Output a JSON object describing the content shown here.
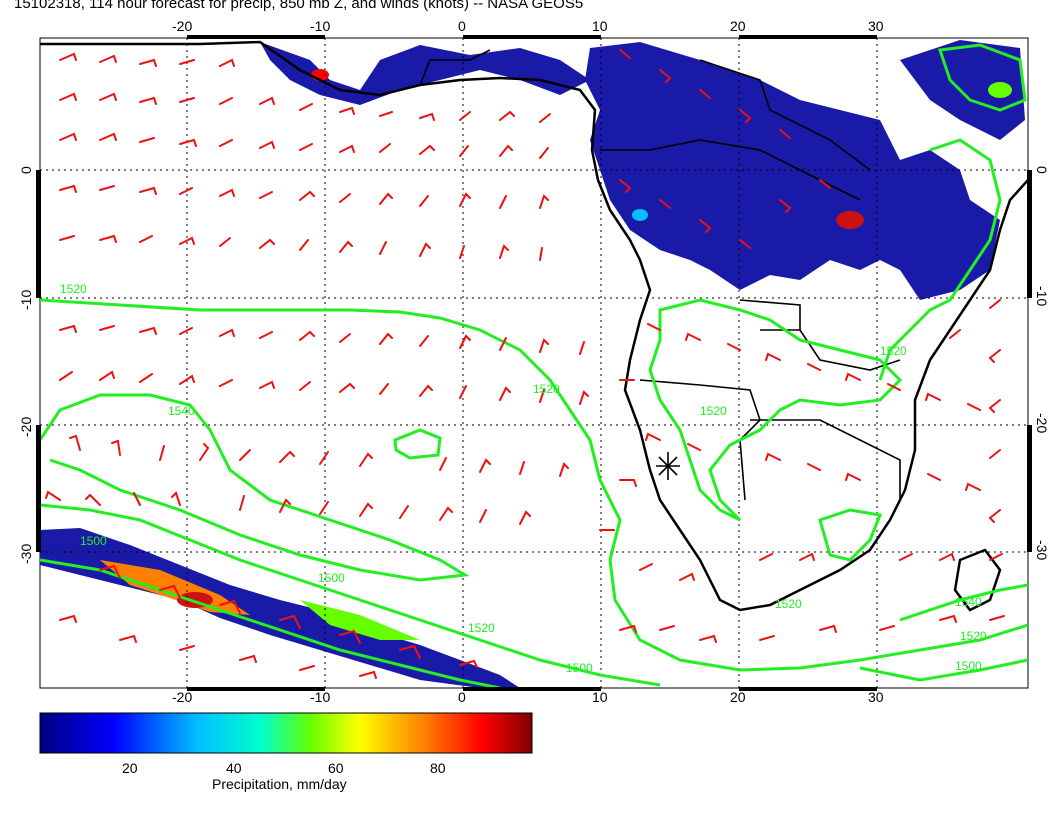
{
  "header": {
    "title": "15102318, 114 hour forecast for precip, 850 mb Z, and winds (knots) -- NASA GEOS5"
  },
  "map": {
    "lon_ticks": [
      "-20",
      "-10",
      "0",
      "10",
      "20",
      "30"
    ],
    "lat_ticks": [
      "0",
      "-10",
      "-20",
      "-30"
    ],
    "contour_labels": [
      "1520",
      "1540",
      "1520",
      "1500",
      "1520",
      "1500",
      "1520",
      "1540",
      "1520",
      "1500",
      "1500",
      "1520",
      "1520"
    ],
    "colors": {
      "contour": "#22ee22",
      "wind_barb": "#ee1111",
      "coast": "#000000",
      "grid": "#000000",
      "precip_low": "#1a1aa8",
      "precip_high": "#cc1111"
    },
    "marker": "star"
  },
  "colorbar": {
    "label": "Precipitation, mm/day",
    "ticks": [
      "20",
      "40",
      "60",
      "80"
    ],
    "range": [
      0,
      100
    ],
    "colors": [
      "#000080",
      "#0000ff",
      "#00bfff",
      "#00ffcc",
      "#66ff00",
      "#ffff00",
      "#ff8000",
      "#ff0000",
      "#800000"
    ]
  }
}
